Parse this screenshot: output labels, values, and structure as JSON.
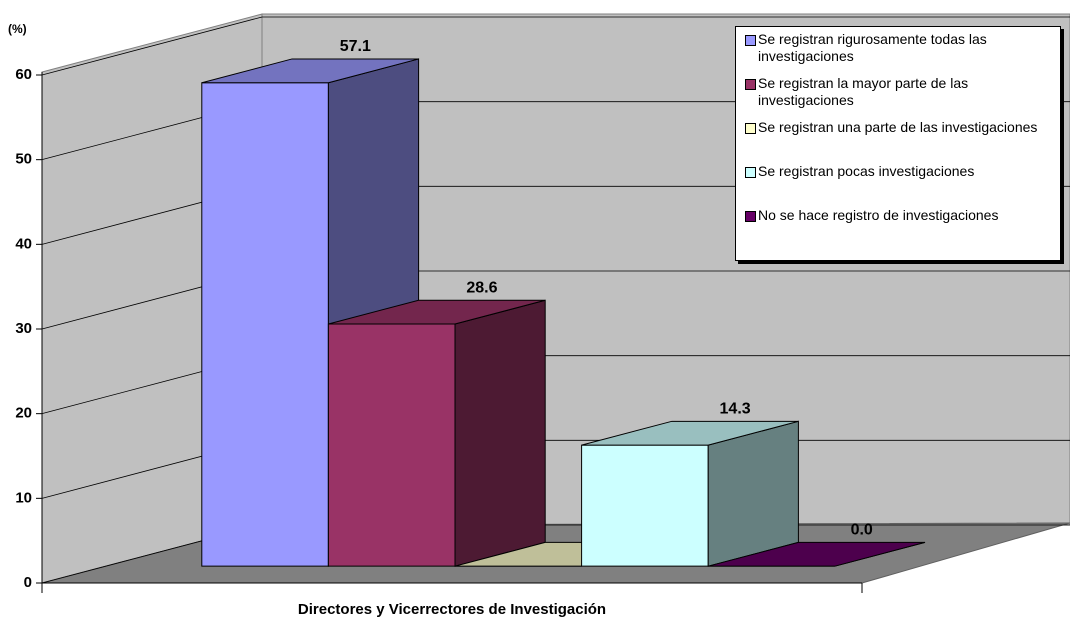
{
  "chart_data": {
    "type": "bar3d",
    "y_label": "(%)",
    "categories": [
      "Directores y Vicerrectores de Investigación"
    ],
    "series": [
      {
        "name": "Se registran rigurosamente todas las investigaciones",
        "color": "#9999ff",
        "values": [
          57.1
        ],
        "value_labels": [
          "57.1"
        ]
      },
      {
        "name": "Se registran la mayor parte de las investigaciones",
        "color": "#993366",
        "values": [
          28.6
        ],
        "value_labels": [
          "28.6"
        ]
      },
      {
        "name": "Se registran una parte de las investigaciones",
        "color": "#ffffcc",
        "values": [
          0
        ],
        "value_labels": [
          "0.0"
        ]
      },
      {
        "name": "Se registran pocas investigaciones",
        "color": "#ccffff",
        "values": [
          14.3
        ],
        "value_labels": [
          "14.3"
        ]
      },
      {
        "name": "No se hace registro de investigaciones",
        "color": "#660066",
        "values": [
          0
        ],
        "value_labels": [
          "0.0"
        ]
      }
    ],
    "ylim": [
      0,
      60
    ],
    "yticks": [
      0,
      10,
      20,
      30,
      40,
      50,
      60
    ],
    "grid": true,
    "legend": "top-right"
  }
}
